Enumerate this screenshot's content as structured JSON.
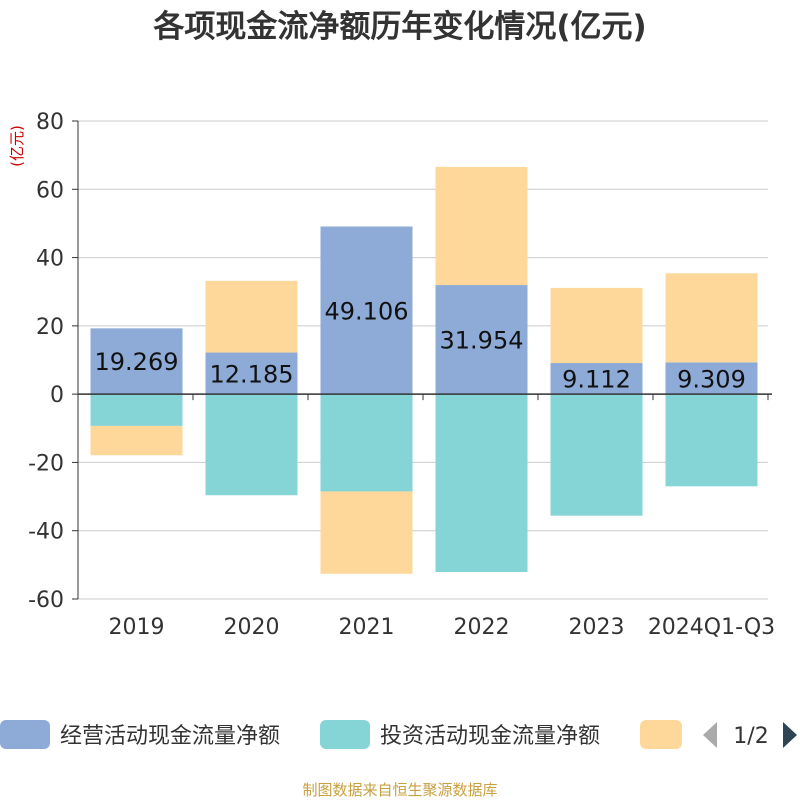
{
  "chart_data": {
    "type": "bar",
    "title": "各项现金流净额历年变化情况(亿元)",
    "ylabel": "(亿元)",
    "categories": [
      "2019",
      "2020",
      "2021",
      "2022",
      "2023",
      "2024Q1-Q3"
    ],
    "ylim": [
      -60,
      80
    ],
    "yticks": [
      80,
      60,
      40,
      20,
      0,
      -20,
      -40,
      -60
    ],
    "grid": true,
    "legend_position": "bottom",
    "series": [
      {
        "name": "经营活动现金流量净额",
        "color": "#8eabd8",
        "values": [
          19.269,
          12.185,
          49.106,
          31.954,
          9.112,
          9.309
        ],
        "labels": [
          "19.269",
          "12.185",
          "49.106",
          "31.954",
          "9.112",
          "9.309"
        ]
      },
      {
        "name": "投资活动现金流量净额",
        "color": "#86d5d6",
        "values": [
          -9.3,
          -29.6,
          -28.5,
          -52.1,
          -35.6,
          -27.0
        ]
      },
      {
        "name": "",
        "color": "#fdd89a",
        "values": [
          -8.6,
          21.0,
          -24.1,
          34.6,
          22.0,
          26.1
        ]
      }
    ]
  },
  "legend": {
    "pager": "1/2"
  },
  "source": "制图数据来自恒生聚源数据库",
  "colors": {
    "title": "#333333",
    "axis": "#333333",
    "grid": "#cccccc",
    "ylabel": "#cc0000",
    "source": "#c8a040",
    "pager_active": "#2f4554",
    "pager_inactive": "#aaaaaa"
  }
}
